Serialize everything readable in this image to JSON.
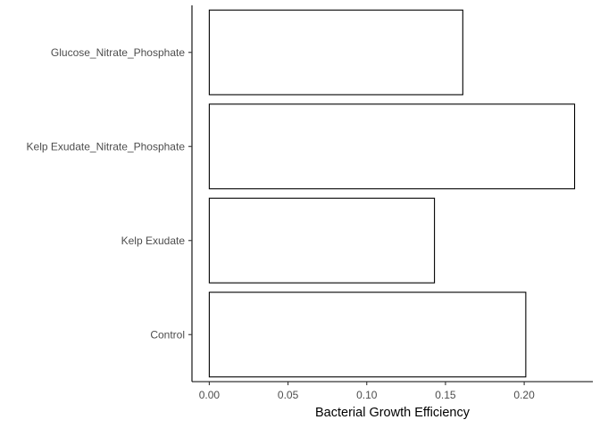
{
  "chart_data": {
    "type": "bar",
    "orientation": "horizontal",
    "categories": [
      "Control",
      "Kelp Exudate",
      "Kelp Exudate_Nitrate_Phosphate",
      "Glucose_Nitrate_Phosphate"
    ],
    "values": [
      0.201,
      0.143,
      0.232,
      0.161
    ],
    "xlabel": "Bacterial Growth Efficiency",
    "ylabel": "",
    "xlim": [
      -0.011,
      0.2436
    ],
    "xticks": [
      0.0,
      0.05,
      0.1,
      0.15,
      0.2
    ],
    "xtick_labels": [
      "0.00",
      "0.05",
      "0.10",
      "0.15",
      "0.20"
    ],
    "grid": false,
    "bar_fill": "#ffffff",
    "bar_stroke": "#000000"
  }
}
